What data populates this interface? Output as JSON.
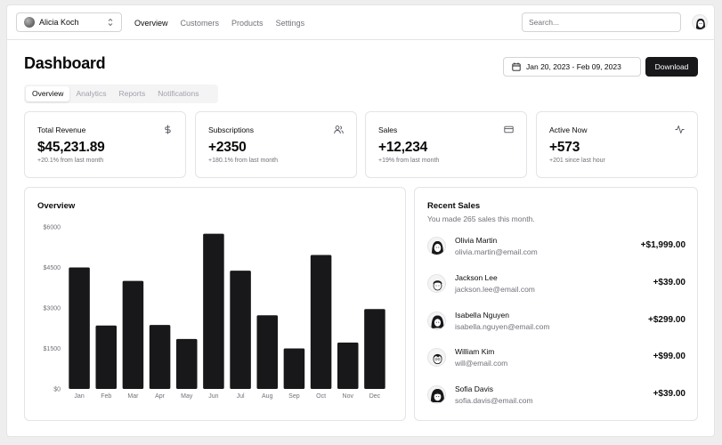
{
  "nav": {
    "team": "Alicia Koch",
    "links": [
      "Overview",
      "Customers",
      "Products",
      "Settings"
    ],
    "active_link": "Overview",
    "search_placeholder": "Search..."
  },
  "header": {
    "title": "Dashboard",
    "date_range": "Jan 20, 2023 - Feb 09, 2023",
    "download_label": "Download"
  },
  "tabs": [
    "Overview",
    "Analytics",
    "Reports",
    "Notifications"
  ],
  "active_tab": "Overview",
  "stats": [
    {
      "title": "Total Revenue",
      "value": "$45,231.89",
      "change": "+20.1% from last month",
      "icon": "dollar-icon"
    },
    {
      "title": "Subscriptions",
      "value": "+2350",
      "change": "+180.1% from last month",
      "icon": "users-icon"
    },
    {
      "title": "Sales",
      "value": "+12,234",
      "change": "+19% from last month",
      "icon": "credit-card-icon"
    },
    {
      "title": "Active Now",
      "value": "+573",
      "change": "+201 since last hour",
      "icon": "activity-icon"
    }
  ],
  "overview": {
    "title": "Overview"
  },
  "chart_data": {
    "type": "bar",
    "title": "Overview",
    "categories": [
      "Jan",
      "Feb",
      "Mar",
      "Apr",
      "May",
      "Jun",
      "Jul",
      "Aug",
      "Sep",
      "Oct",
      "Nov",
      "Dec"
    ],
    "values": [
      4500,
      2350,
      4000,
      2370,
      1850,
      5750,
      4380,
      2730,
      1500,
      4960,
      1720,
      2960
    ],
    "yticks": [
      0,
      1500,
      3000,
      4500,
      6000
    ],
    "ytick_labels": [
      "$0",
      "$1500",
      "$3000",
      "$4500",
      "$6000"
    ],
    "ylim": [
      0,
      6000
    ],
    "bar_color": "#18181b",
    "grid": false
  },
  "recent_sales": {
    "title": "Recent Sales",
    "subtitle": "You made 265 sales this month.",
    "items": [
      {
        "name": "Olivia Martin",
        "email": "olivia.martin@email.com",
        "amount": "+$1,999.00"
      },
      {
        "name": "Jackson Lee",
        "email": "jackson.lee@email.com",
        "amount": "+$39.00"
      },
      {
        "name": "Isabella Nguyen",
        "email": "isabella.nguyen@email.com",
        "amount": "+$299.00"
      },
      {
        "name": "William Kim",
        "email": "will@email.com",
        "amount": "+$99.00"
      },
      {
        "name": "Sofia Davis",
        "email": "sofia.davis@email.com",
        "amount": "+$39.00"
      }
    ]
  },
  "colors": {
    "primary": "#18181b",
    "muted_text": "#71717a",
    "border": "#e4e4e7",
    "background": "#ffffff"
  }
}
